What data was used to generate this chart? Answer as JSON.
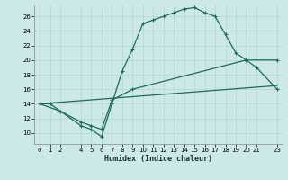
{
  "xlabel": "Humidex (Indice chaleur)",
  "bg_color": "#cce8e8",
  "grid_color": "#b8d8d8",
  "line_color": "#1a6b5a",
  "xlim": [
    -0.5,
    23.5
  ],
  "ylim": [
    8.5,
    27.5
  ],
  "xticks": [
    0,
    1,
    2,
    4,
    5,
    6,
    7,
    8,
    9,
    10,
    11,
    12,
    13,
    14,
    15,
    16,
    17,
    18,
    19,
    20,
    21,
    23
  ],
  "yticks": [
    10,
    12,
    14,
    16,
    18,
    20,
    22,
    24,
    26
  ],
  "curve1_x": [
    0,
    1,
    4,
    5,
    6,
    7,
    8,
    9,
    10,
    11,
    12,
    13,
    14,
    15,
    16,
    17,
    18,
    19,
    20,
    21,
    23
  ],
  "curve1_y": [
    14,
    14,
    11,
    10.5,
    9.5,
    14,
    18.5,
    21.5,
    25,
    25.5,
    26,
    26.5,
    27,
    27.2,
    26.5,
    26,
    23.5,
    21,
    20,
    19,
    16
  ],
  "curve2_x": [
    0,
    23
  ],
  "curve2_y": [
    14,
    16.5
  ],
  "curve3_x": [
    0,
    2,
    4,
    5,
    6,
    7,
    9,
    20,
    23
  ],
  "curve3_y": [
    14,
    13,
    11.5,
    11,
    10.5,
    14.5,
    16,
    20,
    20
  ]
}
